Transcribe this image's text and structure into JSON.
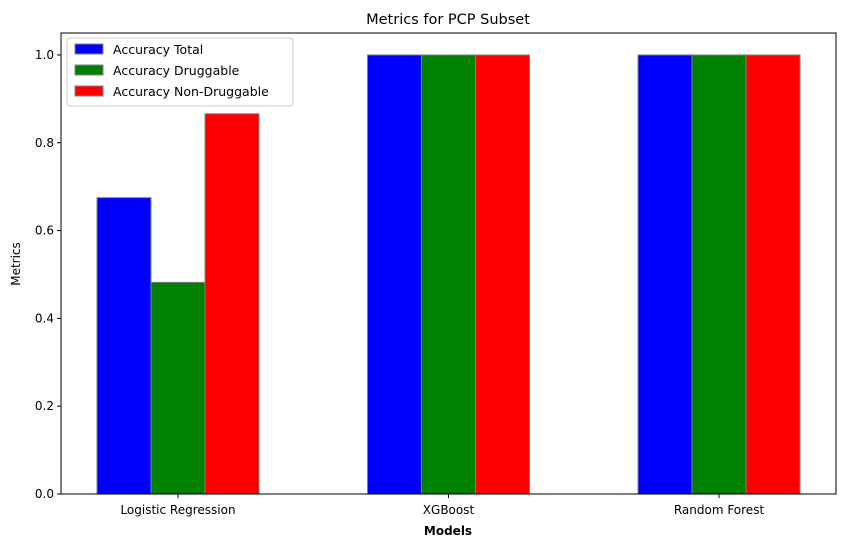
{
  "chart_data": {
    "type": "bar",
    "title": "Metrics for PCP Subset",
    "xlabel": "Models",
    "ylabel": "Metrics",
    "categories": [
      "Logistic Regression",
      "XGBoost",
      "Random Forest"
    ],
    "series": [
      {
        "name": "Accuracy Total",
        "color": "#0000ff",
        "values": [
          0.675,
          1.0,
          1.0
        ]
      },
      {
        "name": "Accuracy Druggable",
        "color": "#008000",
        "values": [
          0.482,
          1.0,
          1.0
        ]
      },
      {
        "name": "Accuracy Non-Druggable",
        "color": "#ff0000",
        "values": [
          0.866,
          1.0,
          1.0
        ]
      }
    ],
    "ylim": [
      0,
      1.05
    ],
    "yticks": [
      "0.0",
      "0.2",
      "0.4",
      "0.6",
      "0.8",
      "1.0"
    ],
    "grid": false,
    "legend_position": "top-left",
    "bar_edge_color": "#808080"
  }
}
